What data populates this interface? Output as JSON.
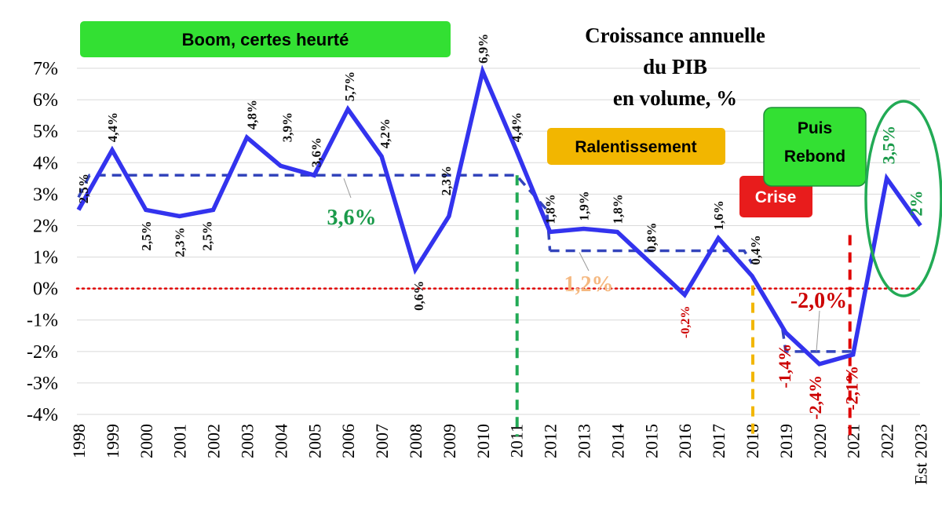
{
  "chart_data": {
    "type": "line",
    "title": [
      "Croissance annuelle",
      "du PIB",
      "en volume, %"
    ],
    "categories": [
      "1998",
      "1999",
      "2000",
      "2001",
      "2002",
      "2003",
      "2004",
      "2005",
      "2006",
      "2007",
      "2008",
      "2009",
      "2010",
      "2011",
      "2012",
      "2013",
      "2014",
      "2015",
      "2016",
      "2017",
      "2018",
      "2019",
      "2020",
      "2021",
      "2022",
      "Est 2023"
    ],
    "values": [
      2.5,
      4.4,
      2.5,
      2.3,
      2.5,
      4.8,
      3.9,
      3.6,
      5.7,
      4.2,
      0.6,
      2.3,
      6.9,
      4.4,
      1.8,
      1.9,
      1.8,
      0.8,
      -0.2,
      1.6,
      0.4,
      -1.4,
      -2.4,
      -2.1,
      3.5,
      2.0
    ],
    "data_labels": [
      "2,5%",
      "4,4%",
      "2,5%",
      "2,3%",
      "2,5%",
      "4,8%",
      "3,9%",
      "3,6%",
      "5,7%",
      "4,2%",
      "0,6%",
      "2,3%",
      "6,9%",
      "4,4%",
      "1,8%",
      "1,9%",
      "1,8%",
      "0,8%",
      "-0,2%",
      "1,6%",
      "0,4%",
      "-1,4%",
      "-2,4%",
      "-2,1%",
      "3,5%",
      "2%"
    ],
    "ylim": [
      -4,
      7
    ],
    "yticks": [
      "-4%",
      "-3%",
      "-2%",
      "-1%",
      "0%",
      "1%",
      "2%",
      "3%",
      "4%",
      "5%",
      "6%",
      "7%"
    ],
    "averages": [
      {
        "from": "1998",
        "to": "2011",
        "value": 3.6,
        "label": "3,6%"
      },
      {
        "from": "2012",
        "to": "2018",
        "value": 1.2,
        "label": "1,2%"
      },
      {
        "from": "2019",
        "to": "2021",
        "value": -2.0,
        "label": "-2,0%"
      }
    ],
    "phases": [
      {
        "label": "Boom, certes heurté",
        "color": "#33e033"
      },
      {
        "label": "Ralentissement",
        "color": "#f2b600"
      },
      {
        "label": "Crise",
        "color": "#e81c1c"
      },
      {
        "label_lines": [
          "Puis",
          "Rebond"
        ],
        "color": "#33e033"
      }
    ],
    "colors": {
      "line": "#3333ee",
      "average": "#3344bb",
      "zero_line": "#e00000",
      "divider_2011": "#22aa55",
      "divider_2018": "#f2b600",
      "divider_2021": "#e00000",
      "highlight_ellipse": "#22aa55",
      "label_green": "#1a9a4a",
      "label_orange": "#f5b880",
      "label_red": "#cc0000"
    },
    "grid": true
  }
}
